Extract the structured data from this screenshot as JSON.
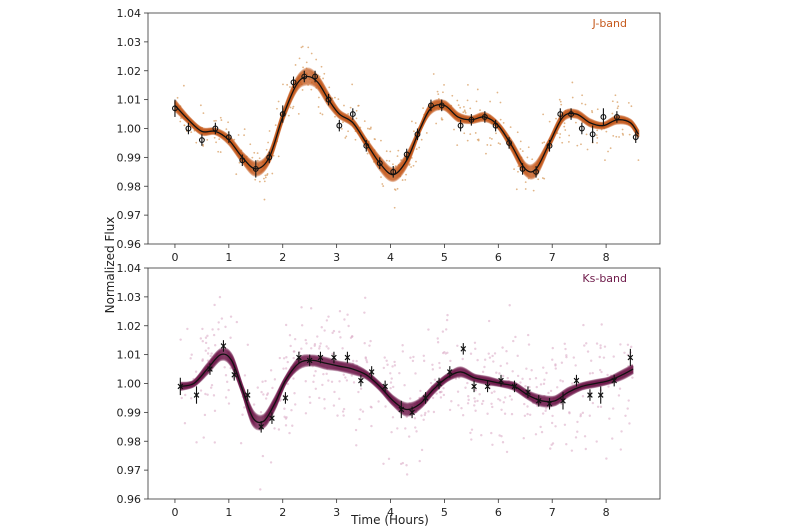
{
  "figure": {
    "ylabel": "Normalized Flux",
    "xlabel": "Time (Hours)"
  },
  "chart_data": [
    {
      "type": "scatter",
      "title": "",
      "legend_text": "J-band",
      "legend_placement": "top-right",
      "color": "#c65a1e",
      "raw_color": "#d9a36a",
      "xlim": [
        -0.5,
        9.0
      ],
      "ylim": [
        0.96,
        1.04
      ],
      "xticks": [
        0,
        1,
        2,
        3,
        4,
        5,
        6,
        7,
        8
      ],
      "yticks": [
        "0.96",
        "0.97",
        "0.98",
        "0.99",
        "1.00",
        "1.01",
        "1.02",
        "1.03",
        "1.04"
      ],
      "xlabel": "",
      "ylabel": "Normalized Flux",
      "grid": false,
      "model_curve": {
        "x": [
          0.0,
          0.25,
          0.5,
          0.75,
          1.0,
          1.25,
          1.5,
          1.75,
          2.0,
          2.25,
          2.45,
          2.65,
          2.85,
          3.05,
          3.3,
          3.55,
          3.8,
          4.05,
          4.3,
          4.55,
          4.75,
          5.0,
          5.25,
          5.5,
          5.75,
          6.0,
          6.25,
          6.5,
          6.7,
          6.95,
          7.2,
          7.45,
          7.7,
          7.95,
          8.2,
          8.45,
          8.6
        ],
        "y": [
          1.008,
          1.003,
          0.999,
          0.999,
          0.996,
          0.99,
          0.986,
          0.99,
          1.004,
          1.015,
          1.018,
          1.016,
          1.01,
          1.005,
          1.002,
          0.995,
          0.988,
          0.984,
          0.989,
          1.0,
          1.007,
          1.008,
          1.004,
          1.003,
          1.004,
          1.001,
          0.994,
          0.986,
          0.986,
          0.995,
          1.004,
          1.005,
          1.002,
          1.001,
          1.003,
          1.002,
          0.998
        ]
      },
      "binned_points": {
        "x": [
          0.0,
          0.25,
          0.5,
          0.75,
          1.0,
          1.25,
          1.5,
          1.75,
          2.0,
          2.2,
          2.4,
          2.6,
          2.85,
          3.05,
          3.3,
          3.55,
          3.8,
          4.05,
          4.3,
          4.5,
          4.75,
          4.95,
          5.3,
          5.5,
          5.75,
          5.95,
          6.2,
          6.45,
          6.7,
          6.95,
          7.15,
          7.35,
          7.55,
          7.75,
          7.95,
          8.2,
          8.55
        ],
        "y": [
          1.007,
          1.0,
          0.996,
          1.0,
          0.997,
          0.989,
          0.986,
          0.99,
          1.005,
          1.016,
          1.018,
          1.018,
          1.01,
          1.001,
          1.005,
          0.994,
          0.988,
          0.985,
          0.991,
          0.998,
          1.008,
          1.008,
          1.001,
          1.003,
          1.004,
          1.001,
          0.995,
          0.986,
          0.985,
          0.994,
          1.005,
          1.005,
          1.0,
          0.998,
          1.004,
          1.004,
          0.997
        ],
        "err": [
          0.003,
          0.002,
          0.002,
          0.002,
          0.002,
          0.002,
          0.003,
          0.002,
          0.003,
          0.002,
          0.002,
          0.002,
          0.002,
          0.002,
          0.002,
          0.002,
          0.002,
          0.002,
          0.002,
          0.002,
          0.002,
          0.002,
          0.002,
          0.002,
          0.002,
          0.002,
          0.002,
          0.002,
          0.002,
          0.002,
          0.002,
          0.002,
          0.002,
          0.003,
          0.003,
          0.002,
          0.002
        ]
      }
    },
    {
      "type": "scatter",
      "title": "",
      "legend_text": "Ks-band",
      "legend_placement": "top-right",
      "color": "#6e1a4a",
      "raw_color": "#d8a6c2",
      "xlim": [
        -0.5,
        9.0
      ],
      "ylim": [
        0.96,
        1.04
      ],
      "xticks": [
        0,
        1,
        2,
        3,
        4,
        5,
        6,
        7,
        8
      ],
      "yticks": [
        "0.96",
        "0.97",
        "0.98",
        "0.99",
        "1.00",
        "1.01",
        "1.02",
        "1.03",
        "1.04"
      ],
      "xlabel": "Time (Hours)",
      "ylabel": "Normalized Flux",
      "grid": false,
      "model_curve": {
        "x": [
          0.1,
          0.35,
          0.6,
          0.85,
          1.05,
          1.25,
          1.45,
          1.65,
          1.85,
          2.05,
          2.3,
          2.55,
          2.8,
          3.05,
          3.3,
          3.55,
          3.8,
          4.05,
          4.3,
          4.55,
          4.8,
          5.05,
          5.3,
          5.55,
          5.8,
          6.05,
          6.3,
          6.55,
          6.8,
          7.05,
          7.3,
          7.55,
          7.8,
          8.05,
          8.3,
          8.5
        ],
        "y": [
          0.999,
          1.0,
          1.005,
          1.01,
          1.008,
          0.998,
          0.988,
          0.987,
          0.993,
          1.001,
          1.007,
          1.008,
          1.007,
          1.006,
          1.005,
          1.003,
          0.999,
          0.994,
          0.991,
          0.993,
          0.998,
          1.002,
          1.004,
          1.002,
          1.001,
          1.0,
          0.999,
          0.996,
          0.994,
          0.994,
          0.997,
          0.999,
          1.0,
          1.001,
          1.003,
          1.005
        ]
      },
      "binned_points": {
        "x": [
          0.1,
          0.4,
          0.65,
          0.9,
          1.1,
          1.35,
          1.6,
          1.8,
          2.05,
          2.3,
          2.5,
          2.7,
          2.95,
          3.2,
          3.45,
          3.65,
          3.9,
          4.2,
          4.4,
          4.65,
          4.9,
          5.1,
          5.35,
          5.55,
          5.8,
          6.05,
          6.3,
          6.55,
          6.75,
          6.95,
          7.2,
          7.45,
          7.7,
          7.9,
          8.15,
          8.45
        ],
        "y": [
          0.999,
          0.996,
          1.005,
          1.013,
          1.003,
          0.996,
          0.985,
          0.988,
          0.995,
          1.009,
          1.008,
          1.009,
          1.009,
          1.009,
          1.001,
          1.004,
          0.999,
          0.991,
          0.99,
          0.995,
          1.0,
          1.004,
          1.012,
          0.999,
          0.999,
          1.001,
          0.999,
          0.997,
          0.994,
          0.993,
          0.994,
          1.001,
          0.996,
          0.996,
          1.001,
          1.009
        ],
        "err": [
          0.003,
          0.003,
          0.002,
          0.002,
          0.002,
          0.002,
          0.002,
          0.002,
          0.002,
          0.002,
          0.002,
          0.002,
          0.002,
          0.002,
          0.002,
          0.002,
          0.002,
          0.003,
          0.002,
          0.002,
          0.002,
          0.002,
          0.002,
          0.002,
          0.002,
          0.002,
          0.002,
          0.002,
          0.002,
          0.002,
          0.003,
          0.002,
          0.002,
          0.003,
          0.002,
          0.003
        ]
      }
    }
  ]
}
